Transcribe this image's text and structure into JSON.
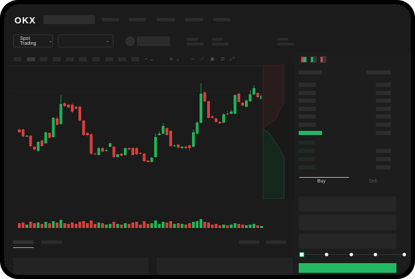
{
  "header": {
    "logo": "OKX"
  },
  "toolbar": {
    "market_selector": "Spot Trading"
  },
  "trade_tabs": [
    {
      "label": "Buy",
      "active": true
    },
    {
      "label": "Sell",
      "active": false
    }
  ],
  "colors": {
    "up": "#22b357",
    "down": "#d9403f",
    "accent": "#22b864",
    "background": "#1b1b1b"
  },
  "icons": [
    "chevron-down-icon",
    "line-chart-icon",
    "ruler-icon",
    "camera-icon",
    "settings-icon",
    "fullscreen-icon",
    "orderbook-both-icon",
    "orderbook-buy-icon",
    "orderbook-sell-icon"
  ],
  "order_slider": {
    "value_percent": 0,
    "stops": [
      0,
      25,
      50,
      75,
      100
    ]
  },
  "chart_data": {
    "type": "candlestick",
    "candles": [
      [
        68,
        64,
        69,
        63
      ],
      [
        68,
        58,
        69,
        57
      ],
      [
        58,
        59,
        60,
        57
      ],
      [
        59,
        44,
        60,
        42
      ],
      [
        43,
        39,
        44,
        37
      ],
      [
        37,
        50,
        51,
        35
      ],
      [
        52,
        44,
        53,
        43
      ],
      [
        48,
        64,
        65,
        47
      ],
      [
        63,
        56,
        64,
        55
      ],
      [
        57,
        85,
        86,
        56
      ],
      [
        84,
        75,
        87,
        74
      ],
      [
        76,
        105,
        118,
        75
      ],
      [
        106,
        102,
        108,
        101
      ],
      [
        104,
        100,
        105,
        99
      ],
      [
        104,
        94,
        106,
        92
      ],
      [
        101,
        98,
        102,
        97
      ],
      [
        101,
        81,
        103,
        80
      ],
      [
        81,
        60,
        82,
        59
      ],
      [
        63,
        60,
        64,
        58
      ],
      [
        61,
        33,
        62,
        31
      ],
      [
        33,
        32,
        34,
        31
      ],
      [
        31,
        41,
        43,
        30
      ],
      [
        41,
        36,
        43,
        35
      ],
      [
        37,
        38,
        40,
        36
      ],
      [
        43,
        48,
        49,
        42
      ],
      [
        43,
        28,
        44,
        26
      ],
      [
        28,
        32,
        33,
        27
      ],
      [
        33,
        30,
        34,
        29
      ],
      [
        31,
        41,
        42,
        30
      ],
      [
        41,
        39,
        42,
        38
      ],
      [
        41,
        31,
        42,
        30
      ],
      [
        41,
        32,
        42,
        31
      ],
      [
        34,
        33,
        35,
        32
      ],
      [
        33,
        22,
        34,
        21
      ],
      [
        23,
        21,
        24,
        20
      ],
      [
        21,
        27,
        28,
        20
      ],
      [
        28,
        57,
        62,
        27
      ],
      [
        60,
        62,
        65,
        59
      ],
      [
        62,
        73,
        77,
        61
      ],
      [
        70,
        60,
        71,
        59
      ],
      [
        66,
        44,
        67,
        43
      ],
      [
        44,
        45,
        46,
        43
      ],
      [
        46,
        42,
        47,
        41
      ],
      [
        41,
        43,
        44,
        40
      ],
      [
        43,
        41,
        45,
        40
      ],
      [
        45,
        41,
        46,
        37
      ],
      [
        43,
        64,
        68,
        42
      ],
      [
        62,
        78,
        80,
        61
      ],
      [
        78,
        120,
        135,
        77
      ],
      [
        122,
        109,
        123,
        107
      ],
      [
        109,
        85,
        110,
        84
      ],
      [
        87,
        85,
        89,
        84
      ],
      [
        84,
        79,
        85,
        78
      ],
      [
        79,
        77,
        80,
        76
      ],
      [
        78,
        90,
        92,
        77
      ],
      [
        91,
        90,
        95,
        89
      ],
      [
        91,
        94,
        97,
        90
      ],
      [
        91,
        118,
        119,
        90
      ],
      [
        120,
        108,
        121,
        107
      ],
      [
        107,
        103,
        108,
        102
      ],
      [
        101,
        110,
        112,
        100
      ],
      [
        109,
        119,
        125,
        108
      ],
      [
        119,
        128,
        132,
        118
      ],
      [
        121,
        115,
        122,
        113
      ],
      [
        112,
        117,
        121,
        111
      ]
    ],
    "volume": [
      7,
      8,
      5,
      9,
      7,
      8,
      6,
      9,
      7,
      10,
      8,
      12,
      7,
      6,
      8,
      6,
      9,
      10,
      7,
      11,
      6,
      8,
      7,
      5,
      6,
      9,
      6,
      5,
      7,
      6,
      8,
      9,
      5,
      10,
      6,
      7,
      11,
      6,
      9,
      8,
      10,
      6,
      7,
      6,
      5,
      7,
      9,
      10,
      13,
      9,
      8,
      5,
      6,
      4,
      5,
      4,
      5,
      7,
      6,
      5,
      4,
      5,
      6,
      4,
      3
    ]
  }
}
